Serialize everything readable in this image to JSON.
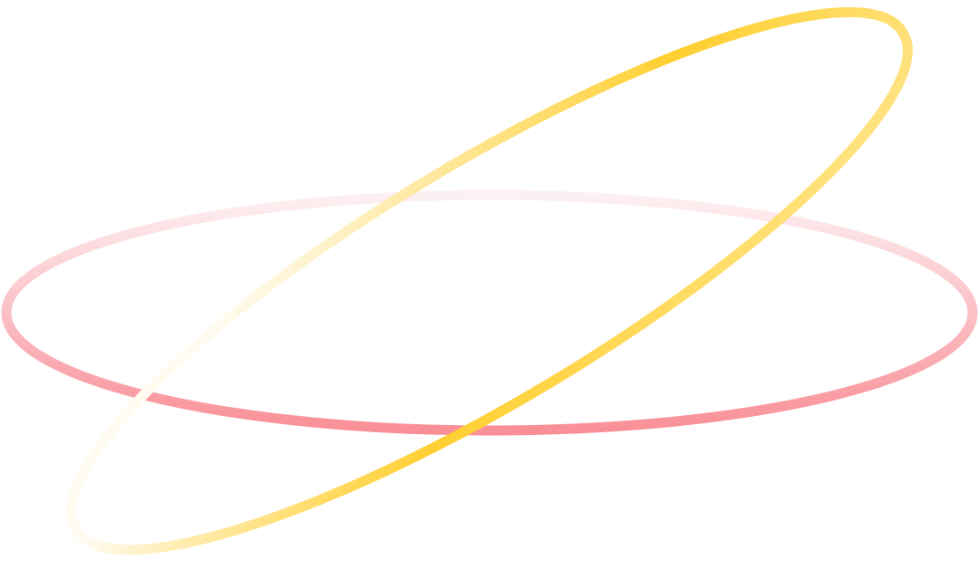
{
  "colors": {
    "pink_ring_top": "#fdf1f3",
    "pink_ring_bottom": "#f98e96",
    "yellow_ring_light": "#fffbf0",
    "yellow_ring_strong": "#ffcf30",
    "yellow_ring_tip": "#ffe27e",
    "background": "#ffffff"
  },
  "shapes": [
    {
      "name": "pink-ring",
      "type": "ellipse-outline"
    },
    {
      "name": "yellow-ring",
      "type": "tilted-ellipse-outline"
    }
  ]
}
